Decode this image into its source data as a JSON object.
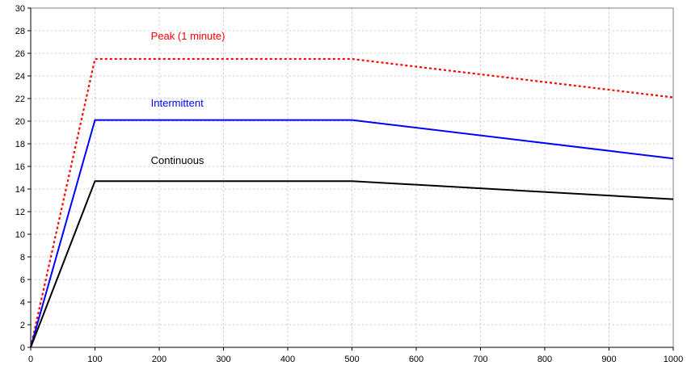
{
  "chart_data": {
    "type": "line",
    "title": "",
    "xlabel": "",
    "ylabel": "",
    "xlim": [
      0,
      1000
    ],
    "ylim": [
      0,
      30
    ],
    "x_ticks": [
      0,
      100,
      200,
      300,
      400,
      500,
      600,
      700,
      800,
      900,
      1000
    ],
    "y_ticks": [
      0,
      2,
      4,
      6,
      8,
      10,
      12,
      14,
      16,
      18,
      20,
      22,
      24,
      26,
      28,
      30
    ],
    "grid": true,
    "legend": "none",
    "series": [
      {
        "name": "Peak (1 minute)",
        "color": "#ff0000",
        "line_style": "dotted",
        "x": [
          0,
          100,
          500,
          1000
        ],
        "y": [
          0,
          25.5,
          25.5,
          22.1
        ],
        "label_at": [
          187,
          27.2
        ]
      },
      {
        "name": "Intermittent",
        "color": "#0000ff",
        "line_style": "solid",
        "x": [
          0,
          100,
          500,
          1000
        ],
        "y": [
          0,
          20.1,
          20.1,
          16.7
        ],
        "label_at": [
          187,
          21.3
        ]
      },
      {
        "name": "Continuous",
        "color": "#000000",
        "line_style": "solid",
        "x": [
          0,
          100,
          500,
          1000
        ],
        "y": [
          0,
          14.7,
          14.7,
          13.1
        ],
        "label_at": [
          187,
          16.2
        ]
      }
    ]
  }
}
